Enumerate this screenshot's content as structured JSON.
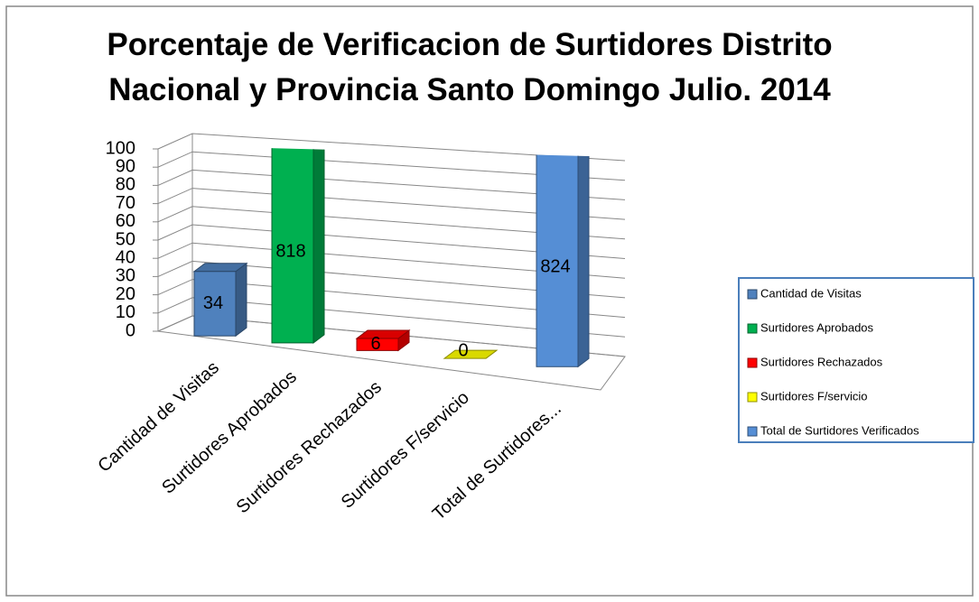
{
  "chart_data": {
    "type": "bar3d",
    "title": "Porcentaje de Verificacion de Surtidores Distrito Nacional  y Provincia Santo Domingo Julio. 2014",
    "categories": [
      "Cantidad de Visitas",
      "Surtidores Aprobados",
      "Surtidores Rechazados",
      "Surtidores F/servicio",
      "Total de Surtidores..."
    ],
    "values": [
      34,
      818,
      6,
      0,
      824
    ],
    "colors": [
      "#4f81bd",
      "#00b050",
      "#ff0000",
      "#ffff00",
      "#558ed5"
    ],
    "legend": [
      "Cantidad de Visitas",
      "Surtidores Aprobados",
      "Surtidores Rechazados",
      "Surtidores F/servicio",
      "Total de Surtidores Verificados"
    ],
    "legend_position": "right",
    "ylim": [
      0,
      100
    ],
    "yticks": [
      0,
      10,
      20,
      30,
      40,
      50,
      60,
      70,
      80,
      90,
      100
    ],
    "grid": true
  }
}
